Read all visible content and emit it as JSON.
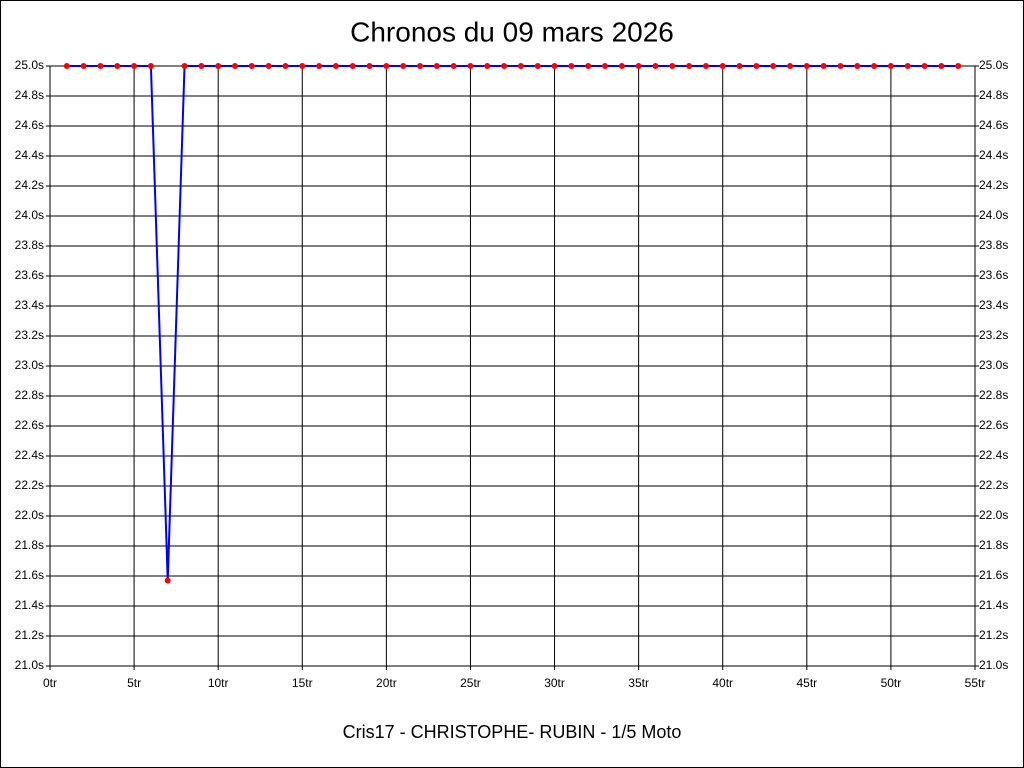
{
  "chart_data": {
    "type": "line",
    "title": "Chronos du 09 mars 2026",
    "x_label": "Cris17 - CHRISTOPHE- RUBIN - 1/5 Moto",
    "x": [
      1,
      2,
      3,
      4,
      5,
      6,
      7,
      8,
      9,
      10,
      11,
      12,
      13,
      14,
      15,
      16,
      17,
      18,
      19,
      20,
      21,
      22,
      23,
      24,
      25,
      26,
      27,
      28,
      29,
      30,
      31,
      32,
      33,
      34,
      35,
      36,
      37,
      38,
      39,
      40,
      41,
      42,
      43,
      44,
      45,
      46,
      47,
      48,
      49,
      50,
      51,
      52,
      53,
      54
    ],
    "values": [
      25.0,
      25.0,
      25.0,
      25.0,
      25.0,
      25.0,
      21.57,
      25.0,
      25.0,
      25.0,
      25.0,
      25.0,
      25.0,
      25.0,
      25.0,
      25.0,
      25.0,
      25.0,
      25.0,
      25.0,
      25.0,
      25.0,
      25.0,
      25.0,
      25.0,
      25.0,
      25.0,
      25.0,
      25.0,
      25.0,
      25.0,
      25.0,
      25.0,
      25.0,
      25.0,
      25.0,
      25.0,
      25.0,
      25.0,
      25.0,
      25.0,
      25.0,
      25.0,
      25.0,
      25.0,
      25.0,
      25.0,
      25.0,
      25.0,
      25.0,
      25.0,
      25.0,
      25.0,
      25.0
    ],
    "color": "#0000ff",
    "marker_color": "#ff0000",
    "drop_color": "#ff0000",
    "xlim": [
      0,
      55
    ],
    "xticks": [
      {
        "value": 0,
        "label": "0tr"
      },
      {
        "value": 5,
        "label": "5tr"
      },
      {
        "value": 10,
        "label": "10tr"
      },
      {
        "value": 15,
        "label": "15tr"
      },
      {
        "value": 20,
        "label": "20tr"
      },
      {
        "value": 25,
        "label": "25tr"
      },
      {
        "value": 30,
        "label": "30tr"
      },
      {
        "value": 35,
        "label": "35tr"
      },
      {
        "value": 40,
        "label": "40tr"
      },
      {
        "value": 45,
        "label": "45tr"
      },
      {
        "value": 50,
        "label": "50tr"
      },
      {
        "value": 55,
        "label": "55tr"
      }
    ],
    "ylim": [
      21.0,
      25.0
    ],
    "yticks": [
      {
        "value": 21.0,
        "label": "21.0s"
      },
      {
        "value": 21.2,
        "label": "21.2s"
      },
      {
        "value": 21.4,
        "label": "21.4s"
      },
      {
        "value": 21.6,
        "label": "21.6s"
      },
      {
        "value": 21.8,
        "label": "21.8s"
      },
      {
        "value": 22.0,
        "label": "22.0s"
      },
      {
        "value": 22.2,
        "label": "22.2s"
      },
      {
        "value": 22.4,
        "label": "22.4s"
      },
      {
        "value": 22.6,
        "label": "22.6s"
      },
      {
        "value": 22.8,
        "label": "22.8s"
      },
      {
        "value": 23.0,
        "label": "23.0s"
      },
      {
        "value": 23.2,
        "label": "23.2s"
      },
      {
        "value": 23.4,
        "label": "23.4s"
      },
      {
        "value": 23.6,
        "label": "23.6s"
      },
      {
        "value": 23.8,
        "label": "23.8s"
      },
      {
        "value": 24.0,
        "label": "24.0s"
      },
      {
        "value": 24.2,
        "label": "24.2s"
      },
      {
        "value": 24.4,
        "label": "24.4s"
      },
      {
        "value": 24.6,
        "label": "24.6s"
      },
      {
        "value": 24.8,
        "label": "24.8s"
      },
      {
        "value": 25.0,
        "label": "25.0s"
      }
    ],
    "grid": true
  }
}
